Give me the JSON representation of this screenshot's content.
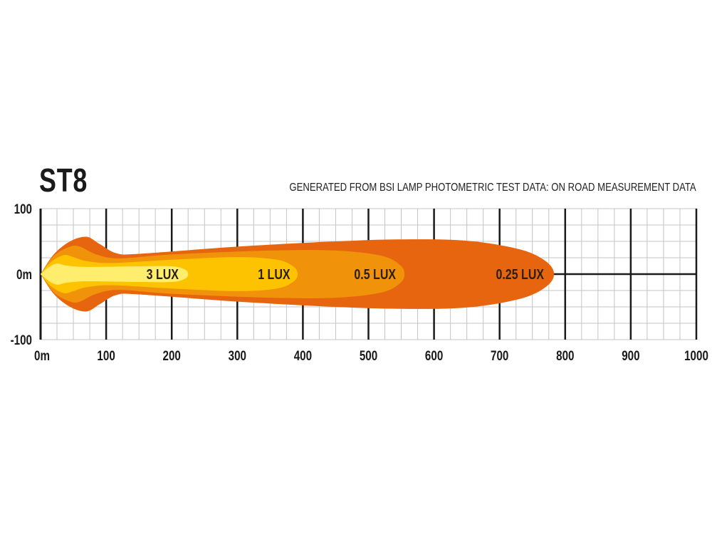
{
  "chart_data": {
    "type": "area",
    "title": "ST8",
    "subtitle": "GENERATED FROM BSI LAMP PHOTOMETRIC TEST DATA: ON ROAD MEASUREMENT DATA",
    "xlabel": "",
    "ylabel": "",
    "xlim": [
      0,
      1000
    ],
    "ylim": [
      -100,
      100
    ],
    "x_ticks": [
      "0m",
      "100",
      "200",
      "300",
      "400",
      "500",
      "600",
      "700",
      "800",
      "900",
      "1000"
    ],
    "y_ticks": [
      "100",
      "0m",
      "-100"
    ],
    "grid": true,
    "series": [
      {
        "name": "0.25 LUX",
        "reach_m": 783,
        "color": "#E8650F",
        "outline": [
          [
            0,
            0
          ],
          [
            20,
            30
          ],
          [
            45,
            50
          ],
          [
            70,
            57
          ],
          [
            90,
            46
          ],
          [
            115,
            32
          ],
          [
            150,
            31
          ],
          [
            300,
            42
          ],
          [
            450,
            50
          ],
          [
            550,
            53
          ],
          [
            650,
            51
          ],
          [
            730,
            38
          ],
          [
            770,
            20
          ],
          [
            783,
            0
          ]
        ]
      },
      {
        "name": "0.5 LUX",
        "reach_m": 555,
        "color": "#F0920A",
        "outline": [
          [
            0,
            0
          ],
          [
            20,
            28
          ],
          [
            45,
            42
          ],
          [
            60,
            42
          ],
          [
            85,
            30
          ],
          [
            120,
            24
          ],
          [
            200,
            30
          ],
          [
            350,
            36
          ],
          [
            450,
            36
          ],
          [
            520,
            28
          ],
          [
            548,
            14
          ],
          [
            555,
            0
          ]
        ]
      },
      {
        "name": "1 LUX",
        "reach_m": 392,
        "color": "#FDC300",
        "outline": [
          [
            0,
            0
          ],
          [
            15,
            18
          ],
          [
            35,
            29
          ],
          [
            50,
            26
          ],
          [
            70,
            20
          ],
          [
            110,
            17
          ],
          [
            200,
            22
          ],
          [
            300,
            26
          ],
          [
            360,
            22
          ],
          [
            385,
            12
          ],
          [
            392,
            0
          ]
        ]
      },
      {
        "name": "3 LUX",
        "reach_m": 225,
        "color": "#FFEE6E",
        "outline": [
          [
            0,
            0
          ],
          [
            12,
            10
          ],
          [
            25,
            16
          ],
          [
            40,
            13
          ],
          [
            70,
            11
          ],
          [
            150,
            12
          ],
          [
            200,
            12
          ],
          [
            220,
            7
          ],
          [
            225,
            0
          ]
        ]
      }
    ],
    "labels": [
      {
        "text": "3 LUX",
        "x": 186
      },
      {
        "text": "1 LUX",
        "x": 356
      },
      {
        "text": "0.5 LUX",
        "x": 510
      },
      {
        "text": "0.25 LUX",
        "x": 731
      }
    ]
  }
}
